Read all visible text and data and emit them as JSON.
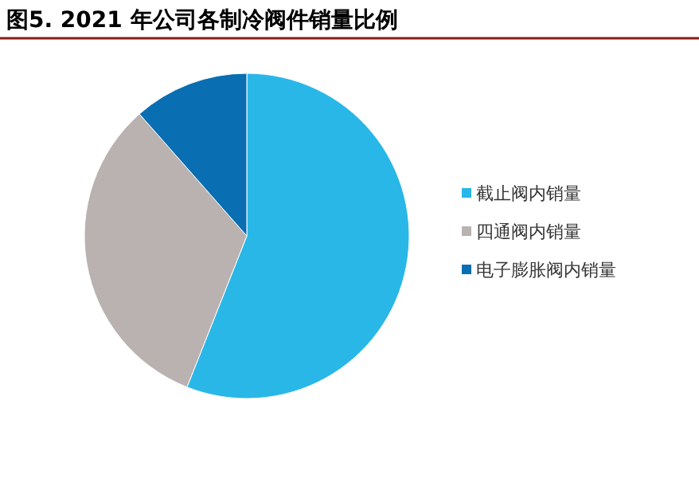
{
  "chart_data": {
    "type": "pie",
    "title": "图5. 2021 年公司各制冷阀件销量比例",
    "categories": [
      "截止阀内销量",
      "四通阀内销量",
      "电子膨胀阀内销量"
    ],
    "values": [
      56,
      32.5,
      11.5
    ],
    "colors": [
      "#29b7e8",
      "#b9b2b1",
      "#096eb2"
    ],
    "legend": "right"
  }
}
